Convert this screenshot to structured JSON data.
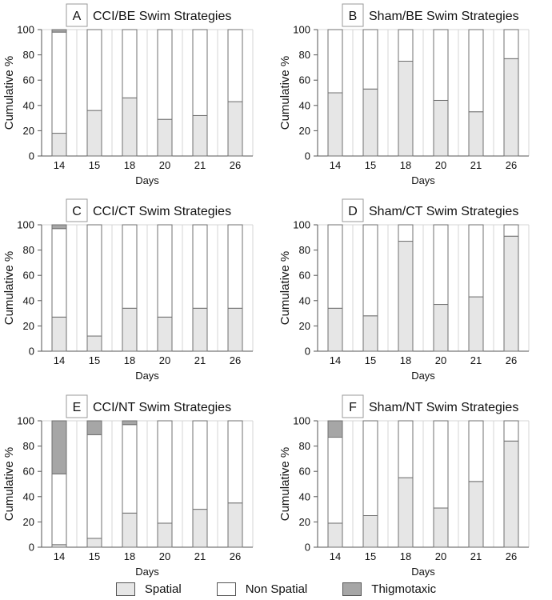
{
  "colors": {
    "spatial": "#e6e6e6",
    "non_spatial": "#ffffff",
    "thigmotaxic": "#a6a6a6",
    "grid": "#d4d4d4",
    "axis": "#555555",
    "bar_edge": "#707070"
  },
  "legend": {
    "spatial": "Spatial",
    "non_spatial": "Non Spatial",
    "thigmotaxic": "Thigmotaxic"
  },
  "chart_data": [
    {
      "type": "bar",
      "stacked": true,
      "panel_letter": "A",
      "title": "CCI/BE Swim Strategies",
      "xlabel": "Days",
      "ylabel": "Cumulative %",
      "ylim": [
        0,
        100
      ],
      "yticks": [
        0,
        20,
        40,
        60,
        80,
        100
      ],
      "categories": [
        "14",
        "15",
        "18",
        "20",
        "21",
        "26"
      ],
      "series": [
        {
          "name": "Spatial",
          "values": [
            18,
            36,
            46,
            29,
            32,
            43
          ]
        },
        {
          "name": "Non Spatial",
          "values": [
            80,
            64,
            54,
            71,
            68,
            57
          ]
        },
        {
          "name": "Thigmotaxic",
          "values": [
            2,
            0,
            0,
            0,
            0,
            0
          ]
        }
      ]
    },
    {
      "type": "bar",
      "stacked": true,
      "panel_letter": "B",
      "title": "Sham/BE Swim Strategies",
      "xlabel": "Days",
      "ylabel": "Cumulative %",
      "ylim": [
        0,
        100
      ],
      "yticks": [
        0,
        20,
        40,
        60,
        80,
        100
      ],
      "categories": [
        "14",
        "15",
        "18",
        "20",
        "21",
        "26"
      ],
      "series": [
        {
          "name": "Spatial",
          "values": [
            50,
            53,
            75,
            44,
            35,
            77
          ]
        },
        {
          "name": "Non Spatial",
          "values": [
            50,
            47,
            25,
            56,
            65,
            23
          ]
        },
        {
          "name": "Thigmotaxic",
          "values": [
            0,
            0,
            0,
            0,
            0,
            0
          ]
        }
      ]
    },
    {
      "type": "bar",
      "stacked": true,
      "panel_letter": "C",
      "title": "CCI/CT Swim Strategies",
      "xlabel": "Days",
      "ylabel": "Cumulative %",
      "ylim": [
        0,
        100
      ],
      "yticks": [
        0,
        20,
        40,
        60,
        80,
        100
      ],
      "categories": [
        "14",
        "15",
        "18",
        "20",
        "21",
        "26"
      ],
      "series": [
        {
          "name": "Spatial",
          "values": [
            27,
            12,
            34,
            27,
            34,
            34
          ]
        },
        {
          "name": "Non Spatial",
          "values": [
            70,
            88,
            66,
            73,
            66,
            66
          ]
        },
        {
          "name": "Thigmotaxic",
          "values": [
            3,
            0,
            0,
            0,
            0,
            0
          ]
        }
      ]
    },
    {
      "type": "bar",
      "stacked": true,
      "panel_letter": "D",
      "title": "Sham/CT Swim Strategies",
      "xlabel": "Days",
      "ylabel": "Cumulative %",
      "ylim": [
        0,
        100
      ],
      "yticks": [
        0,
        20,
        40,
        60,
        80,
        100
      ],
      "categories": [
        "14",
        "15",
        "18",
        "20",
        "21",
        "26"
      ],
      "series": [
        {
          "name": "Spatial",
          "values": [
            34,
            28,
            87,
            37,
            43,
            91
          ]
        },
        {
          "name": "Non Spatial",
          "values": [
            66,
            72,
            13,
            63,
            57,
            9
          ]
        },
        {
          "name": "Thigmotaxic",
          "values": [
            0,
            0,
            0,
            0,
            0,
            0
          ]
        }
      ]
    },
    {
      "type": "bar",
      "stacked": true,
      "panel_letter": "E",
      "title": "CCI/NT Swim Strategies",
      "xlabel": "Days",
      "ylabel": "Cumulative %",
      "ylim": [
        0,
        100
      ],
      "yticks": [
        0,
        20,
        40,
        60,
        80,
        100
      ],
      "categories": [
        "14",
        "15",
        "18",
        "20",
        "21",
        "26"
      ],
      "series": [
        {
          "name": "Spatial",
          "values": [
            2,
            7,
            27,
            19,
            30,
            35
          ]
        },
        {
          "name": "Non Spatial",
          "values": [
            56,
            82,
            70,
            81,
            70,
            65
          ]
        },
        {
          "name": "Thigmotaxic",
          "values": [
            42,
            11,
            3,
            0,
            0,
            0
          ]
        }
      ]
    },
    {
      "type": "bar",
      "stacked": true,
      "panel_letter": "F",
      "title": "Sham/NT Swim Strategies",
      "xlabel": "Days",
      "ylabel": "Cumulative %",
      "ylim": [
        0,
        100
      ],
      "yticks": [
        0,
        20,
        40,
        60,
        80,
        100
      ],
      "categories": [
        "14",
        "15",
        "18",
        "20",
        "21",
        "26"
      ],
      "series": [
        {
          "name": "Spatial",
          "values": [
            19,
            25,
            55,
            31,
            52,
            84
          ]
        },
        {
          "name": "Non Spatial",
          "values": [
            68,
            75,
            45,
            69,
            48,
            16
          ]
        },
        {
          "name": "Thigmotaxic",
          "values": [
            13,
            0,
            0,
            0,
            0,
            0
          ]
        }
      ]
    }
  ]
}
